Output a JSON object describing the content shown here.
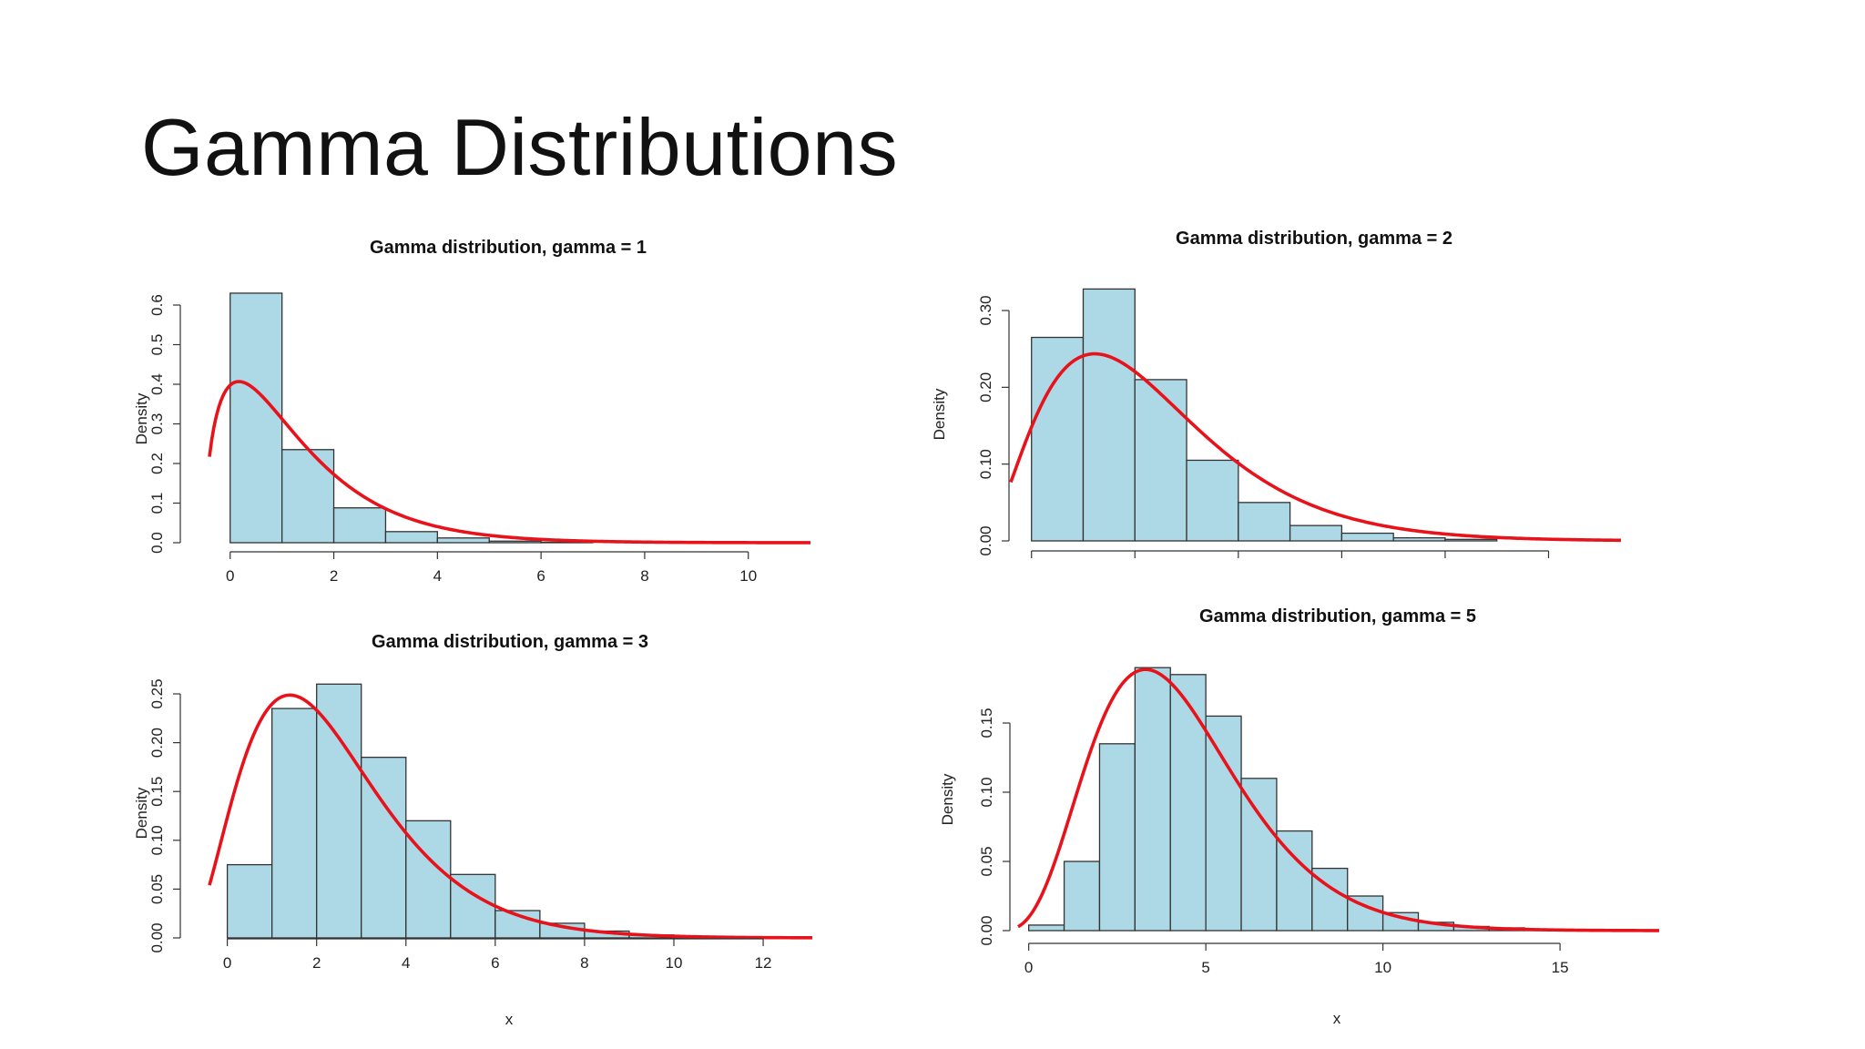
{
  "slide": {
    "title": "Gamma Distributions"
  },
  "style": {
    "bar_fill": "#add8e6",
    "bar_stroke": "#333333",
    "curve_color": "#e8121b"
  },
  "chart_data": [
    {
      "type": "bar",
      "title": "Gamma distribution, gamma = 1",
      "xlabel": "",
      "ylabel": "Density",
      "bin_edges": [
        0,
        1,
        2,
        3,
        4,
        5,
        6,
        7
      ],
      "values": [
        0.63,
        0.235,
        0.088,
        0.028,
        0.012,
        0.004,
        0.001
      ],
      "curve": {
        "shape": 1.6,
        "rate": 0.9,
        "scale": 0.5,
        "x_range": [
          -0.4,
          11.2
        ]
      },
      "xlim": [
        -0.4,
        11.2
      ],
      "ylim": [
        0,
        0.6
      ],
      "xticks": [
        "0",
        "2",
        "4",
        "6",
        "8",
        "10"
      ],
      "yticks": [
        "0.0",
        "0.1",
        "0.2",
        "0.3",
        "0.4",
        "0.5",
        "0.6"
      ],
      "grid": false,
      "legend": "none"
    },
    {
      "type": "bar",
      "title": "Gamma distribution, gamma = 2",
      "xlabel": "",
      "ylabel": "Density",
      "bin_edges": [
        0,
        1,
        2,
        3,
        4,
        5,
        6,
        7,
        8,
        9
      ],
      "values": [
        0.265,
        0.328,
        0.21,
        0.105,
        0.05,
        0.02,
        0.01,
        0.004,
        0.002
      ],
      "curve": {
        "shape": 3.0,
        "rate": 0.9,
        "scale": 1.0,
        "x_range": [
          -0.4,
          11.4
        ]
      },
      "xlim": [
        -0.4,
        11.4
      ],
      "ylim": [
        0,
        0.3
      ],
      "xticks": [
        "",
        "",
        "",
        "",
        "",
        ""
      ],
      "yticks": [
        "0.00",
        "0.10",
        "0.20",
        "0.30"
      ],
      "grid": false,
      "legend": "none"
    },
    {
      "type": "bar",
      "title": "Gamma distribution, gamma = 3",
      "xlabel": "x",
      "ylabel": "Density",
      "bin_edges": [
        0,
        1,
        2,
        3,
        4,
        5,
        6,
        7,
        8,
        9,
        10,
        11
      ],
      "values": [
        0.075,
        0.235,
        0.26,
        0.185,
        0.12,
        0.065,
        0.028,
        0.015,
        0.007,
        0.003,
        0.001
      ],
      "curve": {
        "shape": 3.4,
        "rate": 1.0,
        "scale": 1.0,
        "x_range": [
          -0.4,
          13.1
        ]
      },
      "xlim": [
        -0.4,
        13.1
      ],
      "ylim": [
        0,
        0.25
      ],
      "xticks": [
        "0",
        "2",
        "4",
        "6",
        "8",
        "10",
        "12"
      ],
      "yticks": [
        "0.00",
        "0.05",
        "0.10",
        "0.15",
        "0.20",
        "0.25"
      ],
      "grid": false,
      "legend": "none"
    },
    {
      "type": "bar",
      "title": "Gamma distribution, gamma = 5",
      "xlabel": "x",
      "ylabel": "Density",
      "bin_edges": [
        0,
        1,
        2,
        3,
        4,
        5,
        6,
        7,
        8,
        9,
        10,
        11,
        12,
        13,
        14,
        15
      ],
      "values": [
        0.004,
        0.05,
        0.135,
        0.19,
        0.185,
        0.155,
        0.11,
        0.072,
        0.045,
        0.025,
        0.013,
        0.006,
        0.003,
        0.002,
        0.001
      ],
      "curve": {
        "shape": 5.3,
        "rate": 1.0,
        "scale": 1.0,
        "x_range": [
          -0.3,
          17.8
        ]
      },
      "xlim": [
        -0.3,
        17.8
      ],
      "ylim": [
        0,
        0.15
      ],
      "xticks": [
        "0",
        "5",
        "10",
        "15"
      ],
      "yticks": [
        "0.00",
        "0.05",
        "0.10",
        "0.15"
      ],
      "grid": false,
      "legend": "none"
    }
  ]
}
